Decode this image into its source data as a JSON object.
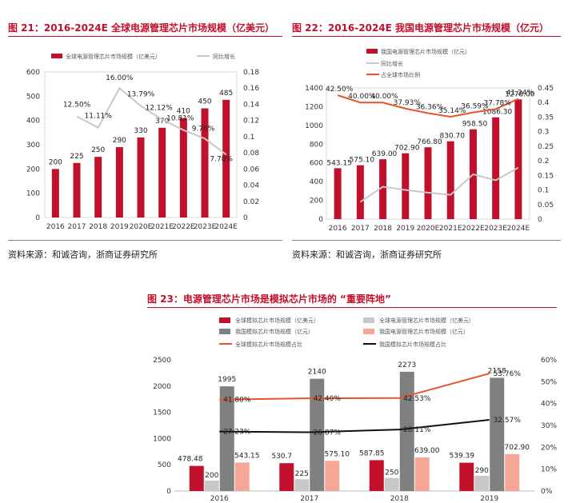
{
  "figures": {
    "fig21": {
      "title": "图 21：2016-2024E 全球电源管理芯片市场规模（亿美元）",
      "source": "资料来源：和诚咨询，浙商证券研究所"
    },
    "fig22": {
      "title": "图 22：2016-2024E 我国电源管理芯片市场规模（亿元）",
      "source": "资料来源：和诚咨询，浙商证券研究所"
    },
    "fig23": {
      "title": "图 23：电源管理芯片市场是模拟芯片市场的 “重要阵地”"
    }
  },
  "colors": {
    "red": "#c0102b",
    "gray_line": "#c8c8c8",
    "orange": "#e8542a",
    "dark_gray": "#808080",
    "light_gray": "#c8c8c8",
    "salmon": "#f4a797",
    "black": "#111111"
  },
  "chart_data": [
    {
      "id": "fig21",
      "type": "bar",
      "categories": [
        "2016",
        "2017",
        "2018",
        "2019",
        "2020E",
        "2021E",
        "2022E",
        "2023E",
        "2024E"
      ],
      "series": [
        {
          "name": "全球电源管理芯片市场规模（亿美元）",
          "type": "bar",
          "axis": "left",
          "values": [
            200,
            225,
            250,
            290,
            330,
            370,
            410,
            450,
            485
          ],
          "labels": [
            "200",
            "225",
            "250",
            "290",
            "330",
            "370",
            "410",
            "450",
            "485"
          ]
        },
        {
          "name": "同比增长",
          "type": "line",
          "axis": "right",
          "values": [
            null,
            0.125,
            0.1111,
            0.16,
            0.1379,
            0.1212,
            0.1081,
            0.0976,
            0.0778
          ],
          "labels": [
            "",
            "12.50%",
            "11.11%",
            "16.00%",
            "13.79%",
            "12.12%",
            "10.81%",
            "9.76%",
            "7.78%"
          ]
        }
      ],
      "ylim": [
        0,
        600
      ],
      "yticks": [
        "0",
        "100",
        "200",
        "300",
        "400",
        "500",
        "600"
      ],
      "y2lim": [
        0,
        0.18
      ],
      "y2ticks": [
        "0",
        "0.02",
        "0.04",
        "0.06",
        "0.08",
        "0.1",
        "0.12",
        "0.14",
        "0.16",
        "0.18"
      ],
      "legend": "top"
    },
    {
      "id": "fig22",
      "type": "bar",
      "categories": [
        "2016",
        "2017",
        "2018",
        "2019",
        "2020E",
        "2021E",
        "2022E",
        "2023E",
        "2024E"
      ],
      "series": [
        {
          "name": "我国电源管理芯片市场规模（亿元）",
          "type": "bar",
          "axis": "left",
          "values": [
            543.15,
            575.1,
            639.0,
            702.9,
            766.8,
            830.7,
            958.5,
            1086.3,
            1278.0
          ],
          "labels": [
            "543.15",
            "575.10",
            "639.00",
            "702.90",
            "766.80",
            "830.70",
            "958.50",
            "1086.30",
            "1278.00"
          ]
        },
        {
          "name": "同比增长",
          "type": "line",
          "axis": "right",
          "values": [
            null,
            0.0588,
            0.1111,
            0.1,
            0.0909,
            0.0833,
            0.1538,
            0.1333,
            0.1765
          ],
          "labels": []
        },
        {
          "name": "占全球市场比例",
          "type": "line",
          "axis": "right",
          "values": [
            0.425,
            0.4,
            0.4,
            0.3793,
            0.3636,
            0.3514,
            0.3659,
            0.3778,
            0.4124
          ],
          "labels": [
            "42.50%",
            "40.00%",
            "40.00%",
            "37.93%",
            "36.36%",
            "35.14%",
            "36.59%",
            "37.78%",
            "41.24%"
          ]
        }
      ],
      "ylim": [
        0,
        1400
      ],
      "yticks": [
        "0",
        "200",
        "400",
        "600",
        "800",
        "1000",
        "1200",
        "1400"
      ],
      "y2lim": [
        0,
        0.45
      ],
      "y2ticks": [
        "0",
        "0.05",
        "0.1",
        "0.15",
        "0.2",
        "0.25",
        "0.3",
        "0.35",
        "0.4",
        "0.45"
      ],
      "legend": "top-left"
    },
    {
      "id": "fig23",
      "type": "bar",
      "categories": [
        "2016",
        "2017",
        "2018",
        "2019"
      ],
      "series": [
        {
          "name": "全球模拟芯片市场规模（亿美元）",
          "type": "bar",
          "axis": "left",
          "values": [
            478.48,
            530.7,
            587.85,
            539.39
          ],
          "labels": [
            "478.48",
            "530.7",
            "587.85",
            "539.39"
          ]
        },
        {
          "name": "全球电源管理芯片市场规模（亿美元）",
          "type": "bar",
          "axis": "left",
          "values": [
            200,
            225,
            250,
            290
          ],
          "labels": [
            "200",
            "225",
            "250",
            "290"
          ]
        },
        {
          "name": "我国模拟芯片市场规模（亿元）",
          "type": "bar",
          "axis": "left",
          "values": [
            1995,
            2140,
            2273,
            2158
          ],
          "labels": [
            "1995",
            "2140",
            "2273",
            "2158"
          ]
        },
        {
          "name": "我国电源管理芯片市场规模（亿元）",
          "type": "bar",
          "axis": "left",
          "values": [
            543.15,
            575.1,
            639.0,
            702.9
          ],
          "labels": [
            "543.15",
            "575.10",
            "639.00",
            "702.90"
          ]
        },
        {
          "name": "全球模拟芯片市场规模占比",
          "type": "line",
          "axis": "right",
          "values": [
            0.418,
            0.424,
            0.4253,
            0.5376
          ],
          "labels": [
            "41.80%",
            "42.40%",
            "42.53%",
            "53.76%"
          ]
        },
        {
          "name": "我国模拟芯片市场规模占比",
          "type": "line",
          "axis": "right",
          "values": [
            0.2723,
            0.2687,
            0.2811,
            0.3257
          ],
          "labels": [
            "27.23%",
            "26.87%",
            "28.11%",
            "32.57%"
          ]
        }
      ],
      "ylim": [
        0,
        2500
      ],
      "yticks": [
        "0",
        "500",
        "1000",
        "1500",
        "2000",
        "2500"
      ],
      "y2lim": [
        0,
        0.6
      ],
      "y2ticks": [
        "0%",
        "10%",
        "20%",
        "30%",
        "40%",
        "50%",
        "60%"
      ],
      "legend": "top"
    }
  ]
}
